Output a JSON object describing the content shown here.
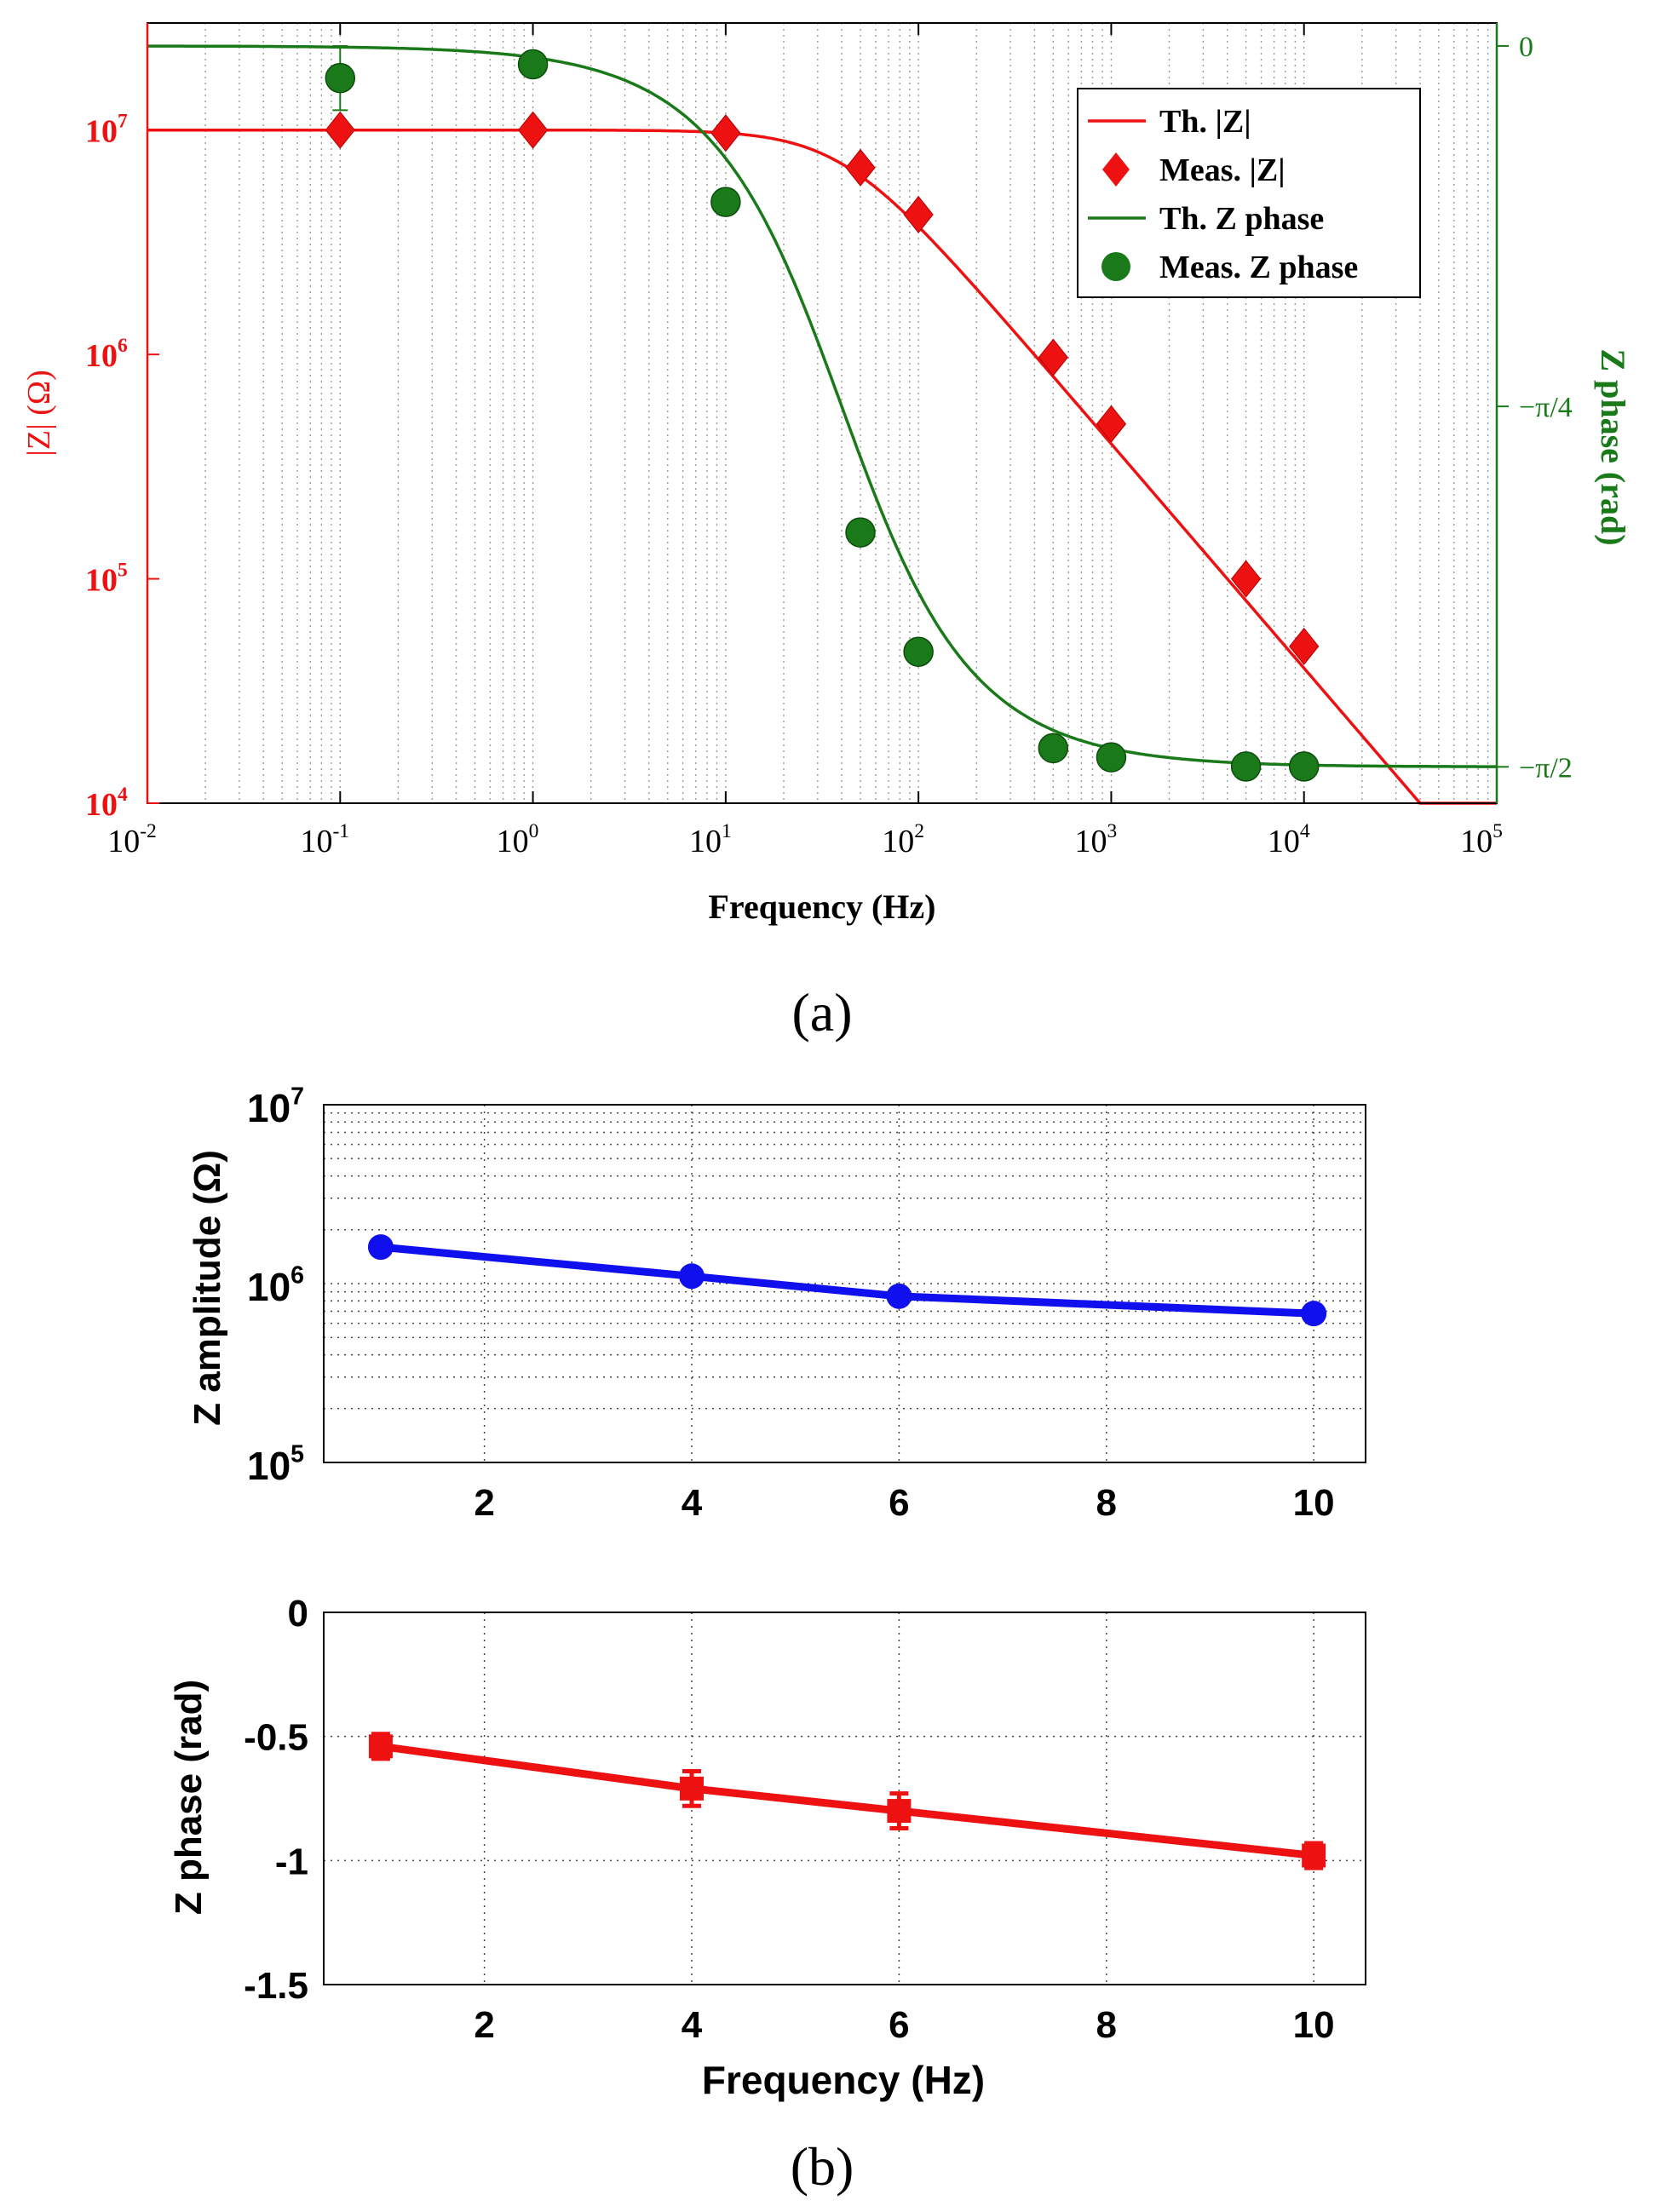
{
  "figure": {
    "caption_a": "(a)",
    "caption_b": "(b)"
  },
  "colors": {
    "red": "#ee1111",
    "green": "#1a7a1a",
    "blue": "#1010ee",
    "black": "#000000"
  },
  "chart_data": [
    {
      "type": "line",
      "id": "a",
      "title": "",
      "xlabel": "Frequency (Hz)",
      "ylabel_left": "|Z| (Ω)",
      "ylabel_right": "Z phase (rad)",
      "xscale": "log",
      "xlim": [
        0.01,
        100000
      ],
      "xticks": [
        0.01,
        0.1,
        1,
        10,
        100,
        1000,
        10000,
        100000
      ],
      "xtick_labels": [
        {
          "base": "10",
          "exp": "-2"
        },
        {
          "base": "10",
          "exp": "-1"
        },
        {
          "base": "10",
          "exp": "0"
        },
        {
          "base": "10",
          "exp": "1"
        },
        {
          "base": "10",
          "exp": "2"
        },
        {
          "base": "10",
          "exp": "3"
        },
        {
          "base": "10",
          "exp": "4"
        },
        {
          "base": "10",
          "exp": "5"
        }
      ],
      "y_left": {
        "scale": "log",
        "lim": [
          10000,
          30000000
        ],
        "ticks": [
          10000,
          100000,
          1000000,
          10000000
        ],
        "tick_labels": [
          {
            "base": "10",
            "exp": "4"
          },
          {
            "base": "10",
            "exp": "5"
          },
          {
            "base": "10",
            "exp": "6"
          },
          {
            "base": "10",
            "exp": "7"
          }
        ]
      },
      "y_right": {
        "scale": "linear",
        "lim": [
          -1.65,
          0.05
        ],
        "ticks": [
          0,
          -0.7854,
          -1.5708
        ],
        "tick_labels": [
          "0",
          "−π/4",
          "−π/2"
        ]
      },
      "legend": {
        "position": "top-right",
        "entries": [
          {
            "label": "Th. |Z|",
            "style": "line",
            "color": "#ee1111"
          },
          {
            "label": "Meas. |Z|",
            "style": "diamond",
            "color": "#ee1111"
          },
          {
            "label": "Th. Z phase",
            "style": "line",
            "color": "#1a7a1a"
          },
          {
            "label": "Meas. Z phase",
            "style": "circle",
            "color": "#1a7a1a"
          }
        ]
      },
      "model": {
        "R": 10000000,
        "fc": 40
      },
      "series": [
        {
          "name": "Meas. |Z|",
          "axis": "left",
          "marker": "diamond",
          "color": "#ee1111",
          "x": [
            0.1,
            1,
            10,
            50,
            100,
            500,
            1000,
            5000,
            10000
          ],
          "values": [
            10000000,
            10000000,
            9700000,
            6800000,
            4200000,
            970000,
            490000,
            100000,
            50000
          ]
        },
        {
          "name": "Meas. Z phase",
          "axis": "right",
          "marker": "circle",
          "color": "#1a7a1a",
          "x": [
            0.1,
            1,
            10,
            50,
            100,
            500,
            1000,
            5000,
            10000
          ],
          "values": [
            -0.07,
            -0.04,
            -0.34,
            -1.06,
            -1.32,
            -1.53,
            -1.55,
            -1.57,
            -1.57
          ],
          "errors": [
            0.07,
            0,
            0,
            0,
            0,
            0,
            0,
            0,
            0
          ]
        }
      ]
    },
    {
      "type": "line",
      "id": "b1",
      "xlabel": "",
      "ylabel": "Z amplitude (Ω)",
      "xlim": [
        0.45,
        10.5
      ],
      "xticks": [
        2,
        4,
        6,
        8,
        10
      ],
      "xtick_labels": [
        "2",
        "4",
        "6",
        "8",
        "10"
      ],
      "yscale": "log",
      "ylim": [
        100000,
        10000000
      ],
      "yticks": [
        100000,
        1000000,
        10000000
      ],
      "ytick_labels": [
        {
          "base": "10",
          "exp": "5"
        },
        {
          "base": "10",
          "exp": "6"
        },
        {
          "base": "10",
          "exp": "7"
        }
      ],
      "grid": true,
      "series": [
        {
          "name": "Z amplitude",
          "color": "#1010ee",
          "marker": "circle",
          "x": [
            1,
            4,
            6,
            10
          ],
          "values": [
            1600000,
            1100000,
            850000,
            680000
          ]
        }
      ]
    },
    {
      "type": "line",
      "id": "b2",
      "xlabel": "Frequency (Hz)",
      "ylabel": "Z phase (rad)",
      "xlim": [
        0.45,
        10.5
      ],
      "xticks": [
        2,
        4,
        6,
        8,
        10
      ],
      "xtick_labels": [
        "2",
        "4",
        "6",
        "8",
        "10"
      ],
      "ylim": [
        -1.5,
        0
      ],
      "yticks": [
        0,
        -0.5,
        -1,
        -1.5
      ],
      "ytick_labels": [
        "0",
        "-0.5",
        "-1",
        "-1.5"
      ],
      "grid": true,
      "series": [
        {
          "name": "Z phase",
          "color": "#ee1111",
          "marker": "square",
          "x": [
            1,
            4,
            6,
            10
          ],
          "values": [
            -0.54,
            -0.71,
            -0.8,
            -0.98
          ],
          "errors": [
            0.05,
            0.07,
            0.07,
            0.05
          ]
        }
      ]
    }
  ]
}
